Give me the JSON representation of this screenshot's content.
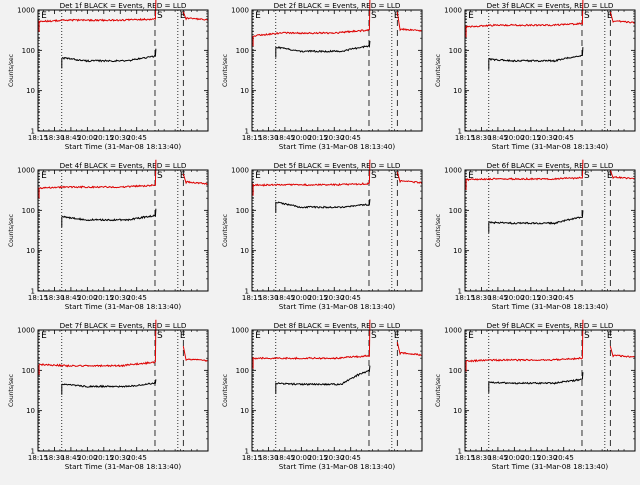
{
  "chart_data": [
    {
      "type": "line",
      "title": "Det 1f BLACK = Events, RED = LLD",
      "xlabel": "Start Time (31-Mar-08 18:13:40)",
      "ylabel": "Counts/sec",
      "yscale": "log",
      "ylim": [
        1,
        1000
      ],
      "xlim": [
        0,
        9300
      ],
      "x_tick_labels": [
        "18:15",
        "18:30",
        "18:45",
        "20:00",
        "20:15",
        "20:30",
        "20:45"
      ],
      "y_tick_labels": [
        "1",
        "10",
        "100",
        "1000"
      ],
      "markers": [
        {
          "label": "E",
          "t": 60,
          "style": "dotted"
        },
        {
          "label": "",
          "t": 1300,
          "style": "dotted"
        },
        {
          "label": "S",
          "t": 6400,
          "style": "dashed"
        },
        {
          "label": "E",
          "t": 7650,
          "style": "dotted"
        },
        {
          "label": "",
          "t": 7950,
          "style": "dashed"
        }
      ],
      "series": [
        {
          "name": "Events",
          "color": "#000000",
          "t0": 1300,
          "t1": 6450,
          "start": 65,
          "level": 55,
          "end": 72,
          "spike": 110
        },
        {
          "name": "LLD",
          "color": "#dd0000",
          "t0": 60,
          "t1": 9300,
          "start": 520,
          "level": 560,
          "end": 600,
          "spike": 1800,
          "gap": [
            6450,
            7950
          ],
          "post": [
            900,
            560
          ]
        }
      ]
    },
    {
      "type": "line",
      "title": "Det 2f BLACK = Events, RED = LLD",
      "xlabel": "Start Time (31-Mar-08 18:13:40)",
      "ylabel": "Counts/sec",
      "yscale": "log",
      "ylim": [
        1,
        1000
      ],
      "xlim": [
        0,
        9300
      ],
      "x_tick_labels": [
        "18:15",
        "18:30",
        "18:45",
        "20:00",
        "20:15",
        "20:30",
        "20:45"
      ],
      "y_tick_labels": [
        "1",
        "10",
        "100",
        "1000"
      ],
      "markers": [
        {
          "label": "E",
          "t": 60,
          "style": "dotted"
        },
        {
          "label": "",
          "t": 1300,
          "style": "dotted"
        },
        {
          "label": "S",
          "t": 6400,
          "style": "dashed"
        },
        {
          "label": "E",
          "t": 7650,
          "style": "dotted"
        },
        {
          "label": "",
          "t": 7950,
          "style": "dashed"
        }
      ],
      "series": [
        {
          "name": "Events",
          "color": "#000000",
          "t0": 1300,
          "t1": 6450,
          "start": 120,
          "level": 95,
          "end": 130,
          "spike": 170
        },
        {
          "name": "LLD",
          "color": "#dd0000",
          "t0": 60,
          "t1": 9300,
          "start": 230,
          "level": 270,
          "end": 320,
          "spike": 1800,
          "gap": [
            6450,
            7950
          ],
          "post": [
            900,
            300
          ]
        }
      ]
    },
    {
      "type": "line",
      "title": "Det 3f BLACK = Events, RED = LLD",
      "xlabel": "Start Time (31-Mar-08 18:13:40)",
      "ylabel": "Counts/sec",
      "yscale": "log",
      "ylim": [
        1,
        1000
      ],
      "xlim": [
        0,
        9300
      ],
      "x_tick_labels": [
        "18:15",
        "18:30",
        "18:45",
        "20:00",
        "20:15",
        "20:30",
        "20:45"
      ],
      "y_tick_labels": [
        "1",
        "10",
        "100",
        "1000"
      ],
      "markers": [
        {
          "label": "E",
          "t": 60,
          "style": "dotted"
        },
        {
          "label": "",
          "t": 1300,
          "style": "dotted"
        },
        {
          "label": "S",
          "t": 6400,
          "style": "dashed"
        },
        {
          "label": "E",
          "t": 7650,
          "style": "dotted"
        },
        {
          "label": "",
          "t": 7950,
          "style": "dashed"
        }
      ],
      "series": [
        {
          "name": "Events",
          "color": "#000000",
          "t0": 1300,
          "t1": 6450,
          "start": 60,
          "level": 55,
          "end": 75,
          "spike": 120
        },
        {
          "name": "LLD",
          "color": "#dd0000",
          "t0": 60,
          "t1": 9300,
          "start": 380,
          "level": 420,
          "end": 460,
          "spike": 1800,
          "gap": [
            6450,
            7950
          ],
          "post": [
            900,
            480
          ]
        }
      ]
    },
    {
      "type": "line",
      "title": "Det 4f BLACK = Events, RED = LLD",
      "xlabel": "Start Time (31-Mar-08 18:13:40)",
      "ylabel": "Counts/sec",
      "yscale": "log",
      "ylim": [
        1,
        1000
      ],
      "xlim": [
        0,
        9300
      ],
      "x_tick_labels": [
        "18:15",
        "18:30",
        "18:45",
        "20:00",
        "20:15",
        "20:30",
        "20:45"
      ],
      "y_tick_labels": [
        "1",
        "10",
        "100",
        "1000"
      ],
      "markers": [
        {
          "label": "E",
          "t": 60,
          "style": "dotted"
        },
        {
          "label": "",
          "t": 1300,
          "style": "dotted"
        },
        {
          "label": "S",
          "t": 6400,
          "style": "dashed"
        },
        {
          "label": "E",
          "t": 7650,
          "style": "dotted"
        },
        {
          "label": "",
          "t": 7950,
          "style": "dashed"
        }
      ],
      "series": [
        {
          "name": "Events",
          "color": "#000000",
          "t0": 1300,
          "t1": 6450,
          "start": 70,
          "level": 58,
          "end": 75,
          "spike": 110
        },
        {
          "name": "LLD",
          "color": "#dd0000",
          "t0": 60,
          "t1": 9300,
          "start": 360,
          "level": 380,
          "end": 420,
          "spike": 1800,
          "gap": [
            6450,
            7950
          ],
          "post": [
            800,
            450
          ]
        }
      ]
    },
    {
      "type": "line",
      "title": "Det 5f BLACK = Events, RED = LLD",
      "xlabel": "Start Time (31-Mar-08 18:13:40)",
      "ylabel": "Counts/sec",
      "yscale": "log",
      "ylim": [
        1,
        1000
      ],
      "xlim": [
        0,
        9300
      ],
      "x_tick_labels": [
        "18:15",
        "18:30",
        "18:45",
        "20:00",
        "20:15",
        "20:30",
        "20:45"
      ],
      "y_tick_labels": [
        "1",
        "10",
        "100",
        "1000"
      ],
      "markers": [
        {
          "label": "E",
          "t": 60,
          "style": "dotted"
        },
        {
          "label": "",
          "t": 1300,
          "style": "dotted"
        },
        {
          "label": "S",
          "t": 6400,
          "style": "dashed"
        },
        {
          "label": "E",
          "t": 7650,
          "style": "dotted"
        },
        {
          "label": "",
          "t": 7950,
          "style": "dashed"
        }
      ],
      "series": [
        {
          "name": "Events",
          "color": "#000000",
          "t0": 1300,
          "t1": 6450,
          "start": 160,
          "level": 120,
          "end": 140,
          "spike": 190
        },
        {
          "name": "LLD",
          "color": "#dd0000",
          "t0": 60,
          "t1": 9300,
          "start": 420,
          "level": 430,
          "end": 460,
          "spike": 1800,
          "gap": [
            6450,
            7950
          ],
          "post": [
            900,
            480
          ]
        }
      ]
    },
    {
      "type": "line",
      "title": "Det 6f BLACK = Events, RED = LLD",
      "xlabel": "Start Time (31-Mar-08 18:13:40)",
      "ylabel": "Counts/sec",
      "yscale": "log",
      "ylim": [
        1,
        1000
      ],
      "xlim": [
        0,
        9300
      ],
      "x_tick_labels": [
        "18:15",
        "18:30",
        "18:45",
        "20:00",
        "20:15",
        "20:30",
        "20:45"
      ],
      "y_tick_labels": [
        "1",
        "10",
        "100",
        "1000"
      ],
      "markers": [
        {
          "label": "E",
          "t": 60,
          "style": "dotted"
        },
        {
          "label": "",
          "t": 1300,
          "style": "dotted"
        },
        {
          "label": "S",
          "t": 6400,
          "style": "dashed"
        },
        {
          "label": "E",
          "t": 7650,
          "style": "dotted"
        },
        {
          "label": "",
          "t": 7950,
          "style": "dashed"
        }
      ],
      "series": [
        {
          "name": "Events",
          "color": "#000000",
          "t0": 1300,
          "t1": 6450,
          "start": 50,
          "level": 48,
          "end": 70,
          "spike": 100
        },
        {
          "name": "LLD",
          "color": "#dd0000",
          "t0": 60,
          "t1": 9300,
          "start": 580,
          "level": 600,
          "end": 640,
          "spike": 1800,
          "gap": [
            6450,
            7950
          ],
          "post": [
            1000,
            600
          ]
        }
      ]
    },
    {
      "type": "line",
      "title": "Det 7f BLACK = Events, RED = LLD",
      "xlabel": "Start Time (31-Mar-08 18:13:40)",
      "ylabel": "Counts/sec",
      "yscale": "log",
      "ylim": [
        1,
        1000
      ],
      "xlim": [
        0,
        9300
      ],
      "x_tick_labels": [
        "18:15",
        "18:30",
        "18:45",
        "20:00",
        "20:15",
        "20:30",
        "20:45"
      ],
      "y_tick_labels": [
        "1",
        "10",
        "100",
        "1000"
      ],
      "markers": [
        {
          "label": "E",
          "t": 60,
          "style": "dotted"
        },
        {
          "label": "",
          "t": 1300,
          "style": "dotted"
        },
        {
          "label": "S",
          "t": 6400,
          "style": "dashed"
        },
        {
          "label": "E",
          "t": 7650,
          "style": "dotted"
        },
        {
          "label": "",
          "t": 7950,
          "style": "dashed"
        }
      ],
      "series": [
        {
          "name": "Events",
          "color": "#000000",
          "t0": 1300,
          "t1": 6450,
          "start": 45,
          "level": 40,
          "end": 48,
          "spike": 60
        },
        {
          "name": "LLD",
          "color": "#dd0000",
          "t0": 60,
          "t1": 9300,
          "start": 140,
          "level": 130,
          "end": 160,
          "spike": 1800,
          "gap": [
            6450,
            7950
          ],
          "post": [
            400,
            170
          ]
        }
      ]
    },
    {
      "type": "line",
      "title": "Det 8f BLACK = Events, RED = LLD",
      "xlabel": "Start Time (31-Mar-08 18:13:40)",
      "ylabel": "Counts/sec",
      "yscale": "log",
      "ylim": [
        1,
        1000
      ],
      "xlim": [
        0,
        9300
      ],
      "x_tick_labels": [
        "18:15",
        "18:30",
        "18:45",
        "20:00",
        "20:15",
        "20:30",
        "20:45"
      ],
      "y_tick_labels": [
        "1",
        "10",
        "100",
        "1000"
      ],
      "markers": [
        {
          "label": "E",
          "t": 60,
          "style": "dotted"
        },
        {
          "label": "",
          "t": 1300,
          "style": "dotted"
        },
        {
          "label": "S",
          "t": 6400,
          "style": "dashed"
        },
        {
          "label": "E",
          "t": 7650,
          "style": "dotted"
        },
        {
          "label": "",
          "t": 7950,
          "style": "dashed"
        }
      ],
      "series": [
        {
          "name": "Events",
          "color": "#000000",
          "t0": 1300,
          "t1": 6450,
          "start": 48,
          "level": 45,
          "end": 100,
          "spike": 130
        },
        {
          "name": "LLD",
          "color": "#dd0000",
          "t0": 60,
          "t1": 9300,
          "start": 200,
          "level": 200,
          "end": 230,
          "spike": 1800,
          "gap": [
            6450,
            7950
          ],
          "post": [
            500,
            240
          ]
        }
      ]
    },
    {
      "type": "line",
      "title": "Det 9f BLACK = Events, RED = LLD",
      "xlabel": "Start Time (31-Mar-08 18:13:40)",
      "ylabel": "Counts/sec",
      "yscale": "log",
      "ylim": [
        1,
        1000
      ],
      "xlim": [
        0,
        9300
      ],
      "x_tick_labels": [
        "18:15",
        "18:30",
        "18:45",
        "20:00",
        "20:15",
        "20:30",
        "20:45"
      ],
      "y_tick_labels": [
        "1",
        "10",
        "100",
        "1000"
      ],
      "markers": [
        {
          "label": "E",
          "t": 60,
          "style": "dotted"
        },
        {
          "label": "",
          "t": 1300,
          "style": "dotted"
        },
        {
          "label": "S",
          "t": 6400,
          "style": "dashed"
        },
        {
          "label": "E",
          "t": 7650,
          "style": "dotted"
        },
        {
          "label": "",
          "t": 7950,
          "style": "dashed"
        }
      ],
      "series": [
        {
          "name": "Events",
          "color": "#000000",
          "t0": 1300,
          "t1": 6450,
          "start": 50,
          "level": 48,
          "end": 60,
          "spike": 90
        },
        {
          "name": "LLD",
          "color": "#dd0000",
          "t0": 60,
          "t1": 9300,
          "start": 170,
          "level": 180,
          "end": 200,
          "spike": 1800,
          "gap": [
            6450,
            7950
          ],
          "post": [
            400,
            210
          ]
        }
      ]
    }
  ]
}
